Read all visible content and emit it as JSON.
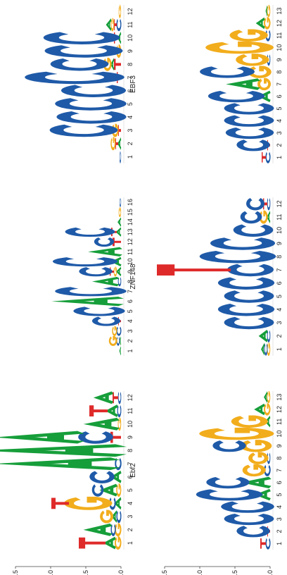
{
  "chart_data": {
    "type": "sequence-logo",
    "ylabel": "Bits",
    "ylim": [
      0,
      2
    ],
    "y_ticks": [
      "0.0",
      "0.5",
      "1.0",
      "1.5"
    ],
    "colors": {
      "A": "#169e3a",
      "C": "#1f5aa8",
      "G": "#f2ad1c",
      "T": "#df2a2a"
    },
    "panels": [
      {
        "id": "foxc2",
        "name": "FOXC2",
        "length": 12,
        "positions": [
          [
            [
              "G",
              0.08
            ],
            [
              "A",
              0.14
            ],
            [
              "T",
              0.38
            ]
          ],
          [
            [
              "G",
              0.08
            ],
            [
              "C",
              0.06
            ],
            [
              "A",
              0.32
            ]
          ],
          [
            [
              "C",
              0.06
            ],
            [
              "A",
              0.06
            ],
            [
              "G",
              0.16
            ]
          ],
          [
            [
              "A",
              0.08
            ],
            [
              "C",
              0.08
            ],
            [
              "G",
              0.58
            ],
            [
              "T",
              0.25
            ]
          ],
          [
            [
              "G",
              0.06
            ],
            [
              "A",
              0.2
            ],
            [
              "C",
              0.14
            ]
          ],
          [
            [
              "A",
              0.12
            ],
            [
              "C",
              0.3
            ]
          ],
          [
            [
              "C",
              0.08
            ],
            [
              "A",
              1.4
            ]
          ],
          [
            [
              "A",
              1.65
            ]
          ],
          [
            [
              "T",
              0.15
            ],
            [
              "C",
              0.42
            ],
            [
              "A",
              1.0
            ]
          ],
          [
            [
              "G",
              0.04
            ],
            [
              "A",
              0.4
            ]
          ],
          [
            [
              "C",
              0.05
            ],
            [
              "A",
              0.14
            ],
            [
              "T",
              0.26
            ]
          ],
          [
            [
              "C",
              0.04
            ],
            [
              "T",
              0.08
            ],
            [
              "A",
              0.22
            ]
          ]
        ]
      },
      {
        "id": "klf9",
        "name": "KLF9",
        "length": 16,
        "positions": [
          [
            [
              "A",
              0.02
            ]
          ],
          [
            [
              "A",
              0.02
            ],
            [
              "C",
              0.04
            ],
            [
              "G",
              0.1
            ]
          ],
          [
            [
              "C",
              0.06
            ],
            [
              "G",
              0.06
            ]
          ],
          [
            [
              "T",
              0.04
            ],
            [
              "C",
              0.34
            ]
          ],
          [
            [
              "C",
              0.62
            ]
          ],
          [
            [
              "A",
              0.8
            ]
          ],
          [
            [
              "C",
              0.86
            ]
          ],
          [
            [
              "C",
              0.04
            ],
            [
              "A",
              0.3
            ]
          ],
          [
            [
              "A",
              0.06
            ],
            [
              "G",
              0.04
            ],
            [
              "T",
              0.06
            ],
            [
              "C",
              0.4
            ]
          ],
          [
            [
              "A",
              0.12
            ],
            [
              "C",
              0.78
            ]
          ],
          [
            [
              "A",
              0.38
            ]
          ],
          [
            [
              "T",
              0.12
            ],
            [
              "C",
              0.24
            ]
          ],
          [
            [
              "A",
              0.06
            ],
            [
              "T",
              0.08
            ],
            [
              "C",
              0.6
            ]
          ],
          [
            [
              "A",
              0.04
            ]
          ],
          [
            [
              "G",
              0.03
            ]
          ],
          [
            [
              "C",
              0.02
            ]
          ]
        ]
      },
      {
        "id": "klf4",
        "name": "KLF4",
        "length": 12,
        "positions": [
          [
            [
              "C",
              0.02
            ]
          ],
          [
            [
              "A",
              0.04
            ],
            [
              "T",
              0.04
            ],
            [
              "G",
              0.06
            ]
          ],
          [
            [
              "T",
              0.04
            ],
            [
              "G",
              0.08
            ],
            [
              "C",
              0.82
            ]
          ],
          [
            [
              "C",
              0.84
            ]
          ],
          [
            [
              "C",
              0.86
            ]
          ],
          [
            [
              "C",
              0.78
            ]
          ],
          [
            [
              "T",
              0.06
            ],
            [
              "C",
              1.2
            ]
          ],
          [
            [
              "T",
              0.1
            ],
            [
              "A",
              0.04
            ],
            [
              "G",
              0.1
            ],
            [
              "C",
              0.7
            ]
          ],
          [
            [
              "G",
              0.06
            ],
            [
              "C",
              0.94
            ]
          ],
          [
            [
              "A",
              0.04
            ],
            [
              "T",
              0.06
            ],
            [
              "C",
              0.92
            ]
          ],
          [
            [
              "C",
              0.06
            ],
            [
              "T",
              0.04
            ],
            [
              "G",
              0.04
            ],
            [
              "A",
              0.06
            ]
          ],
          [
            [
              "G",
              0.03
            ]
          ]
        ]
      },
      {
        "id": "ebf2",
        "name": "Ebf2",
        "length": 13,
        "positions": [
          [
            [
              "C",
              0.06
            ],
            [
              "T",
              0.08
            ]
          ],
          [
            [
              "T",
              0.04
            ],
            [
              "C",
              0.4
            ]
          ],
          [
            [
              "C",
              0.6
            ]
          ],
          [
            [
              "C",
              0.64
            ]
          ],
          [
            [
              "A",
              0.18
            ],
            [
              "C",
              0.8
            ]
          ],
          [
            [
              "A",
              0.34
            ],
            [
              "C",
              0.52
            ]
          ],
          [
            [
              "C",
              0.08
            ],
            [
              "G",
              0.28
            ]
          ],
          [
            [
              "C",
              0.04
            ],
            [
              "G",
              0.24
            ]
          ],
          [
            [
              "G",
              0.38
            ],
            [
              "C",
              0.4
            ]
          ],
          [
            [
              "G",
              0.9
            ]
          ],
          [
            [
              "A",
              0.06
            ],
            [
              "G",
              0.44
            ]
          ],
          [
            [
              "G",
              0.08
            ],
            [
              "A",
              0.12
            ]
          ],
          [
            [
              "G",
              0.04
            ],
            [
              "A",
              0.04
            ]
          ]
        ]
      },
      {
        "id": "znf148",
        "name": "ZNF148",
        "length": 12,
        "positions": [
          [
            [
              "G",
              0.04
            ],
            [
              "C",
              0.04
            ],
            [
              "A",
              0.04
            ]
          ],
          [
            [
              "C",
              0.04
            ],
            [
              "A",
              0.1
            ]
          ],
          [
            [
              "C",
              0.6
            ]
          ],
          [
            [
              "C",
              0.68
            ]
          ],
          [
            [
              "C",
              0.6
            ]
          ],
          [
            [
              "C",
              0.68
            ]
          ],
          [
            [
              "C",
              0.56
            ],
            [
              "T",
              1.05
            ]
          ],
          [
            [
              "C",
              0.92
            ]
          ],
          [
            [
              "C",
              0.78
            ]
          ],
          [
            [
              "C",
              0.48
            ]
          ],
          [
            [
              "A",
              0.04
            ],
            [
              "G",
              0.1
            ],
            [
              "C",
              0.26
            ]
          ],
          [
            [
              "C",
              0.04
            ],
            [
              "T",
              0.06
            ],
            [
              "C",
              0.22
            ]
          ]
        ]
      },
      {
        "id": "ebf3",
        "name": "EBF3",
        "length": 13,
        "positions": [
          [
            [
              "C",
              0.06
            ],
            [
              "T",
              0.06
            ]
          ],
          [
            [
              "T",
              0.04
            ],
            [
              "C",
              0.4
            ]
          ],
          [
            [
              "C",
              0.58
            ]
          ],
          [
            [
              "C",
              0.6
            ]
          ],
          [
            [
              "C",
              0.6
            ]
          ],
          [
            [
              "A",
              0.14
            ],
            [
              "C",
              0.68
            ]
          ],
          [
            [
              "G",
              0.16
            ],
            [
              "A",
              0.38
            ]
          ],
          [
            [
              "G",
              0.28
            ],
            [
              "C",
              0.66
            ]
          ],
          [
            [
              "C",
              0.04
            ],
            [
              "G",
              0.4
            ]
          ],
          [
            [
              "G",
              0.82
            ]
          ],
          [
            [
              "C",
              0.06
            ],
            [
              "G",
              0.46
            ]
          ],
          [
            [
              "G",
              0.08
            ],
            [
              "A",
              0.1
            ]
          ],
          [
            [
              "G",
              0.04
            ],
            [
              "A",
              0.02
            ]
          ]
        ]
      }
    ]
  }
}
